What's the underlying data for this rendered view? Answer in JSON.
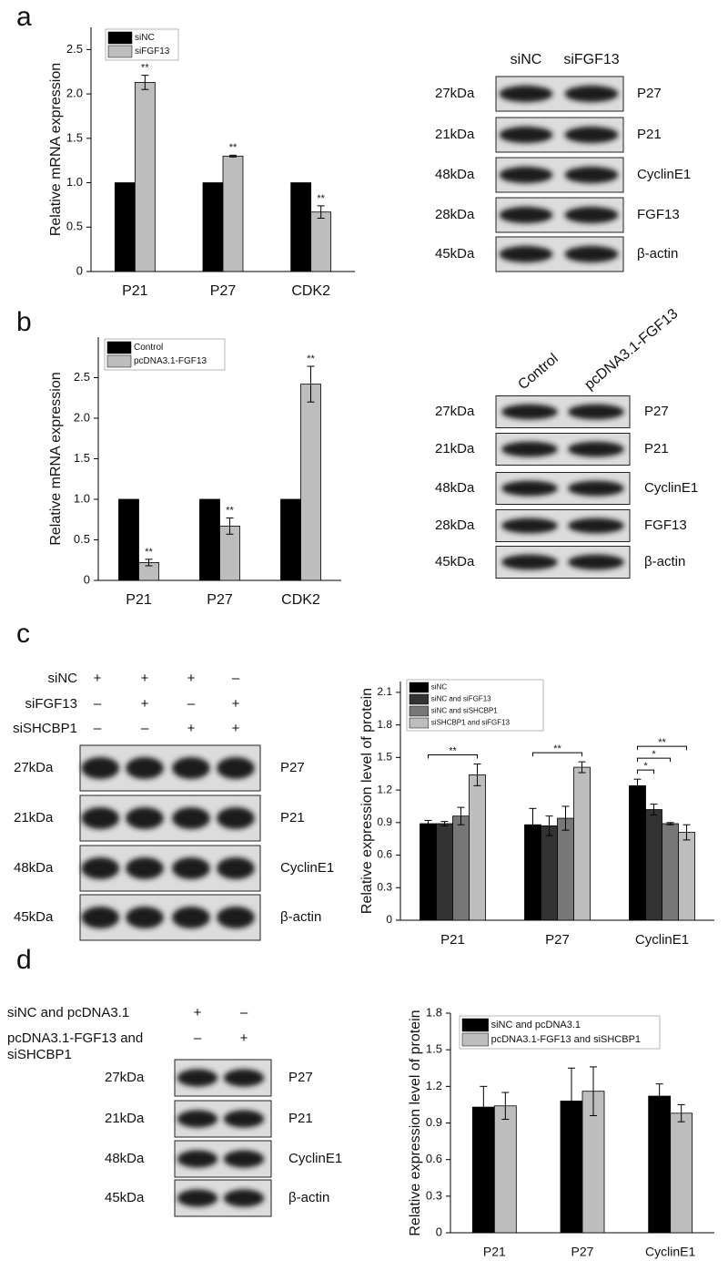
{
  "panels": [
    "a",
    "b",
    "c",
    "d"
  ],
  "chart_data": [
    {
      "type": "bar",
      "ylabel": "Relative mRNA expression",
      "categories": [
        "P21",
        "P27",
        "CDK2"
      ],
      "series": [
        {
          "name": "siNC",
          "color": "#000000",
          "values": [
            1,
            1,
            1
          ]
        },
        {
          "name": "siFGF13",
          "color": "#bdbdbd",
          "values": [
            2.13,
            1.3,
            0.67
          ],
          "errors": [
            0.08,
            0.01,
            0.07
          ],
          "significance": [
            "**",
            "**",
            "**"
          ]
        }
      ],
      "ylim": [
        0,
        2.75
      ],
      "yticks": [
        0,
        0.5,
        {
          "value": 1,
          "label": "1.0"
        },
        1.5,
        {
          "value": 2,
          "label": "2.0"
        },
        2.5
      ],
      "legend": "upper left"
    },
    {
      "type": "bar",
      "ylabel": "Relative mRNA expression",
      "categories": [
        "P21",
        "P27",
        "CDK2"
      ],
      "series": [
        {
          "name": "Control",
          "color": "#000000",
          "values": [
            1,
            1,
            1
          ]
        },
        {
          "name": "pcDNA3.1-FGF13",
          "color": "#bdbdbd",
          "values": [
            0.22,
            0.67,
            2.42
          ],
          "errors": [
            0.04,
            0.1,
            0.22
          ],
          "significance": [
            "**",
            "**",
            "**"
          ]
        }
      ],
      "ylim": [
        0,
        3.0
      ],
      "yticks": [
        0,
        0.5,
        {
          "value": 1,
          "label": "1.0"
        },
        1.5,
        {
          "value": 2,
          "label": "2.0"
        },
        2.5
      ],
      "legend": "upper left"
    },
    {
      "type": "bar",
      "ylabel": "Relative expression level of protein",
      "categories": [
        "P21",
        "P27",
        "CyclinE1"
      ],
      "series": [
        {
          "name": "siNC",
          "color": "#000000",
          "values": [
            0.89,
            0.88,
            1.24
          ],
          "errors": [
            0.03,
            0.15,
            0.06
          ]
        },
        {
          "name": "siNC and siFGF13",
          "color": "#333333",
          "values": [
            0.89,
            0.87,
            1.02
          ],
          "errors": [
            0.02,
            0.09,
            0.05
          ]
        },
        {
          "name": "siNC and siSHCBP1",
          "color": "#777777",
          "values": [
            0.96,
            0.94,
            0.89
          ],
          "errors": [
            0.08,
            0.11,
            0.01
          ]
        },
        {
          "name": "siSHCBP1 and siFGF13",
          "color": "#bdbdbd",
          "values": [
            1.34,
            1.41,
            0.81
          ],
          "errors": [
            0.1,
            0.05,
            0.07
          ]
        }
      ],
      "brackets": [
        {
          "category": 0,
          "from": 0,
          "to": 3,
          "label": "**"
        },
        {
          "category": 1,
          "from": 0,
          "to": 3,
          "label": "**"
        },
        {
          "category": 2,
          "from": 0,
          "to": 1,
          "label": "*"
        },
        {
          "category": 2,
          "from": 0,
          "to": 2,
          "label": "*"
        },
        {
          "category": 2,
          "from": 0,
          "to": 3,
          "label": "**"
        }
      ],
      "ylim": [
        0,
        2.2
      ],
      "yticks": [
        0,
        0.3,
        0.6,
        0.9,
        1.2,
        1.5,
        1.8,
        2.1
      ],
      "legend": "upper left"
    },
    {
      "type": "bar",
      "ylabel": "Relative expression level of protein",
      "categories": [
        "P21",
        "P27",
        "CyclinE1"
      ],
      "series": [
        {
          "name": "siNC and pcDNA3.1",
          "color": "#000000",
          "values": [
            1.03,
            1.08,
            1.12
          ],
          "errors": [
            0.17,
            0.27,
            0.1
          ]
        },
        {
          "name": "pcDNA3.1-FGF13 and siSHCBP1",
          "color": "#bdbdbd",
          "values": [
            1.04,
            1.16,
            0.98
          ],
          "errors": [
            0.11,
            0.2,
            0.07
          ]
        }
      ],
      "ylim": [
        0,
        1.8
      ],
      "yticks": [
        0,
        0.3,
        0.6,
        0.9,
        1.2,
        1.5,
        1.8
      ],
      "legend": "upper left"
    }
  ],
  "blots": [
    {
      "columns": [
        "siNC",
        "siFGF13"
      ],
      "rows": [
        {
          "size": "27kDa",
          "protein": "P27"
        },
        {
          "size": "21kDa",
          "protein": "P21"
        },
        {
          "size": "48kDa",
          "protein": "CyclinE1"
        },
        {
          "size": "28kDa",
          "protein": "FGF13"
        },
        {
          "size": "45kDa",
          "protein": "β-actin"
        }
      ]
    },
    {
      "columns": [
        "Control",
        "pcDNA3.1-FGF13"
      ],
      "rows": [
        {
          "size": "27kDa",
          "protein": "P27"
        },
        {
          "size": "21kDa",
          "protein": "P21"
        },
        {
          "size": "48kDa",
          "protein": "CyclinE1"
        },
        {
          "size": "28kDa",
          "protein": "FGF13"
        },
        {
          "size": "45kDa",
          "protein": "β-actin"
        }
      ]
    },
    {
      "conditions": [
        {
          "name": "siNC",
          "signs": [
            "+",
            "+",
            "+",
            "–"
          ]
        },
        {
          "name": "siFGF13",
          "signs": [
            "–",
            "+",
            "–",
            "+"
          ]
        },
        {
          "name": "siSHCBP1",
          "signs": [
            "–",
            "–",
            "+",
            "+"
          ]
        }
      ],
      "rows": [
        {
          "size": "27kDa",
          "protein": "P27"
        },
        {
          "size": "21kDa",
          "protein": "P21"
        },
        {
          "size": "48kDa",
          "protein": "CyclinE1"
        },
        {
          "size": "45kDa",
          "protein": "β-actin"
        }
      ]
    },
    {
      "conditions": [
        {
          "name": "siNC and pcDNA3.1",
          "signs": [
            "+",
            "–"
          ]
        },
        {
          "name": "pcDNA3.1-FGF13 and siSHCBP1",
          "signs": [
            "–",
            "+"
          ]
        }
      ],
      "rows": [
        {
          "size": "27kDa",
          "protein": "P27"
        },
        {
          "size": "21kDa",
          "protein": "P21"
        },
        {
          "size": "48kDa",
          "protein": "CyclinE1"
        },
        {
          "size": "45kDa",
          "protein": "β-actin"
        }
      ]
    }
  ]
}
